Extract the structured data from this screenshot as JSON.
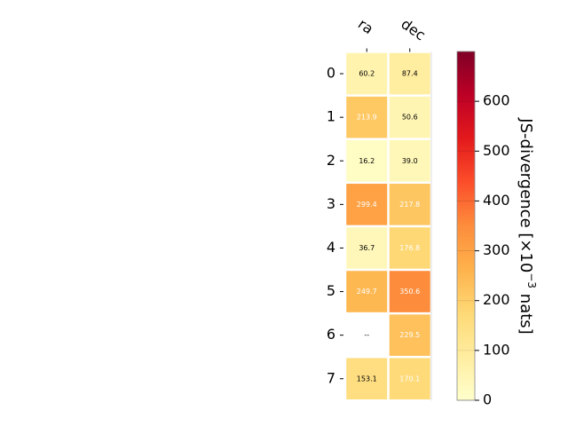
{
  "chart_data": {
    "type": "heatmap",
    "columns": [
      "ra",
      "dec"
    ],
    "rows": [
      "0",
      "1",
      "2",
      "3",
      "4",
      "5",
      "6",
      "7"
    ],
    "values": [
      [
        60.2,
        87.4
      ],
      [
        213.9,
        50.6
      ],
      [
        16.2,
        39.0
      ],
      [
        299.4,
        217.8
      ],
      [
        36.7,
        176.8
      ],
      [
        249.7,
        350.6
      ],
      [
        null,
        229.5
      ],
      [
        153.1,
        170.1
      ]
    ],
    "missing_label": "--",
    "colorbar": {
      "label": "JS-divergence [×10⁻³ nats]",
      "label_main": "JS-divergence [×10",
      "label_exp": "−3",
      "label_tail": " nats]",
      "ticks": [
        "0",
        "100",
        "200",
        "300",
        "400",
        "500",
        "600"
      ],
      "tick_values": [
        0,
        100,
        200,
        300,
        400,
        500,
        600
      ],
      "range": [
        0,
        700
      ],
      "colormap": "YlOrRd"
    }
  }
}
